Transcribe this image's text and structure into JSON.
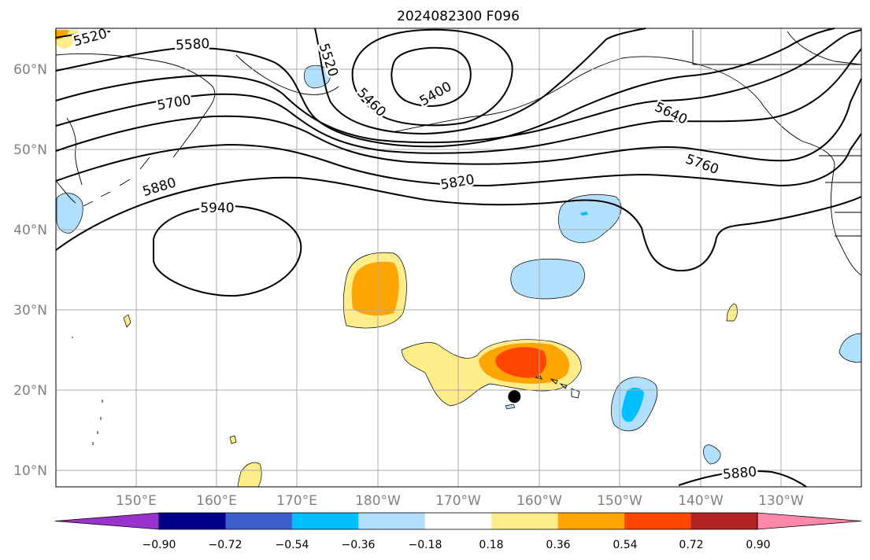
{
  "title": "2024082300 F096",
  "lat_labels": [
    "60°N",
    "50°N",
    "40°N",
    "30°N",
    "20°N",
    "10°N"
  ],
  "lon_labels": [
    "150°E",
    "160°E",
    "170°E",
    "180°W",
    "170°W",
    "160°W",
    "150°W",
    "140°W",
    "130°W"
  ],
  "contour_labels": [
    "5520",
    "5580",
    "5520",
    "5400",
    "5460",
    "5700",
    "5640",
    "5760",
    "5820",
    "5880",
    "5940",
    "5880"
  ],
  "colorbar": {
    "ticks": [
      "−0.90",
      "−0.72",
      "−0.54",
      "−0.36",
      "−0.18",
      "0.18",
      "0.36",
      "0.54",
      "0.72",
      "0.90"
    ],
    "colors": [
      "#9932cc",
      "#00008b",
      "#3a5fcd",
      "#00bfff",
      "#b0e0fe",
      "#ffffff",
      "#ffed8b",
      "#ffa500",
      "#ff4500",
      "#b22222",
      "#ff88aa"
    ]
  },
  "marker": {
    "lat": 19.2,
    "lon": -163.1
  }
}
